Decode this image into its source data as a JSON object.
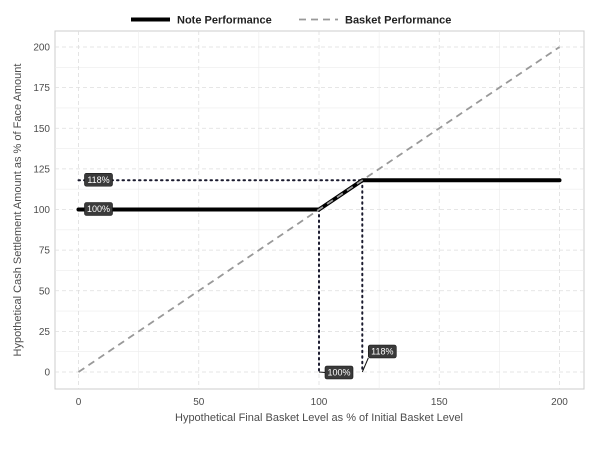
{
  "chart_data": {
    "type": "line",
    "xlabel": "Hypothetical Final Basket Level as % of Initial Basket Level",
    "ylabel": "Hypothetical Cash Settlement Amount as % of Face Amount",
    "xlim": [
      -10,
      210
    ],
    "ylim": [
      -15,
      210
    ],
    "x_ticks": [
      0,
      50,
      100,
      150,
      200
    ],
    "y_ticks": [
      0,
      25,
      50,
      75,
      100,
      125,
      150,
      175,
      200
    ],
    "grid": true,
    "legend_position": "top",
    "series": [
      {
        "name": "Note Performance",
        "style": "solid",
        "color": "#000000",
        "points": [
          [
            0,
            100
          ],
          [
            100,
            100
          ],
          [
            118,
            118
          ],
          [
            200,
            118
          ]
        ]
      },
      {
        "name": "Basket Performance",
        "style": "dashed",
        "color": "#999999",
        "points": [
          [
            0,
            0
          ],
          [
            200,
            200
          ]
        ]
      }
    ],
    "reference_lines": [
      {
        "points": [
          [
            0,
            118
          ],
          [
            118,
            118
          ]
        ]
      },
      {
        "points": [
          [
            118,
            118
          ],
          [
            118,
            0
          ]
        ]
      },
      {
        "points": [
          [
            100,
            100
          ],
          [
            100,
            0
          ]
        ]
      }
    ],
    "annotations": [
      {
        "text": "118%",
        "x": 0,
        "y": 118
      },
      {
        "text": "100%",
        "x": 0,
        "y": 100
      },
      {
        "text": "100%",
        "x": 100,
        "y": 0
      },
      {
        "text": "118%",
        "x": 118,
        "y": 0
      }
    ]
  }
}
